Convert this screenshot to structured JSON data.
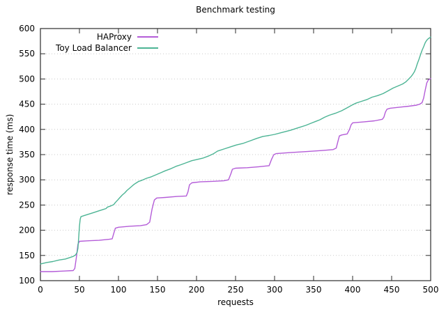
{
  "window": {
    "background": "#ffffff"
  },
  "chart_data": {
    "type": "line",
    "title": "Benchmark testing",
    "xlabel": "requests",
    "ylabel": "response time (ms)",
    "xlim": [
      0,
      500
    ],
    "ylim": [
      100,
      600
    ],
    "xticks": [
      0,
      50,
      100,
      150,
      200,
      250,
      300,
      350,
      400,
      450,
      500
    ],
    "yticks": [
      100,
      150,
      200,
      250,
      300,
      350,
      400,
      450,
      500,
      550,
      600
    ],
    "grid": "horizontal dotted gridlines at y ticks only",
    "legend_position": "top-left inside plot, labels right-aligned before line samples",
    "colors": {
      "axis": "#2b2b2b",
      "grid": "#c9c9c9",
      "text": "#000000",
      "haproxy": "#b45cd8",
      "toy_load_balancer": "#4cb494"
    },
    "series": [
      {
        "name": "HAProxy",
        "color": "#b45cd8",
        "points": [
          [
            0,
            118
          ],
          [
            15,
            118
          ],
          [
            30,
            119
          ],
          [
            42,
            120
          ],
          [
            44,
            124
          ],
          [
            46,
            145
          ],
          [
            48,
            172
          ],
          [
            50,
            178
          ],
          [
            60,
            179
          ],
          [
            75,
            180
          ],
          [
            88,
            182
          ],
          [
            92,
            183
          ],
          [
            94,
            194
          ],
          [
            96,
            204
          ],
          [
            100,
            206
          ],
          [
            115,
            208
          ],
          [
            128,
            209
          ],
          [
            136,
            211
          ],
          [
            140,
            216
          ],
          [
            143,
            242
          ],
          [
            146,
            260
          ],
          [
            149,
            264
          ],
          [
            160,
            265
          ],
          [
            175,
            267
          ],
          [
            187,
            268
          ],
          [
            189,
            276
          ],
          [
            191,
            290
          ],
          [
            194,
            294
          ],
          [
            205,
            296
          ],
          [
            220,
            297
          ],
          [
            235,
            298
          ],
          [
            241,
            300
          ],
          [
            244,
            312
          ],
          [
            246,
            321
          ],
          [
            250,
            323
          ],
          [
            265,
            324
          ],
          [
            280,
            326
          ],
          [
            293,
            328
          ],
          [
            296,
            340
          ],
          [
            299,
            350
          ],
          [
            302,
            352
          ],
          [
            320,
            354
          ],
          [
            340,
            356
          ],
          [
            360,
            358
          ],
          [
            375,
            360
          ],
          [
            379,
            363
          ],
          [
            381,
            375
          ],
          [
            383,
            387
          ],
          [
            386,
            389
          ],
          [
            393,
            391
          ],
          [
            396,
            400
          ],
          [
            398,
            409
          ],
          [
            400,
            413
          ],
          [
            415,
            415
          ],
          [
            428,
            417
          ],
          [
            438,
            420
          ],
          [
            440,
            424
          ],
          [
            442,
            434
          ],
          [
            444,
            440
          ],
          [
            448,
            442
          ],
          [
            460,
            444
          ],
          [
            472,
            446
          ],
          [
            482,
            448
          ],
          [
            486,
            450
          ],
          [
            489,
            453
          ],
          [
            491,
            462
          ],
          [
            493,
            478
          ],
          [
            495,
            492
          ],
          [
            497,
            498
          ],
          [
            500,
            501
          ]
        ]
      },
      {
        "name": "Toy Load Balancer",
        "color": "#4cb494",
        "points": [
          [
            0,
            133
          ],
          [
            8,
            136
          ],
          [
            16,
            138
          ],
          [
            24,
            141
          ],
          [
            32,
            143
          ],
          [
            38,
            146
          ],
          [
            42,
            148
          ],
          [
            45,
            151
          ],
          [
            47,
            156
          ],
          [
            48,
            164
          ],
          [
            49,
            185
          ],
          [
            50,
            208
          ],
          [
            51,
            222
          ],
          [
            52,
            227
          ],
          [
            56,
            229
          ],
          [
            62,
            232
          ],
          [
            68,
            235
          ],
          [
            74,
            238
          ],
          [
            80,
            241
          ],
          [
            84,
            243
          ],
          [
            86,
            246
          ],
          [
            90,
            248
          ],
          [
            94,
            251
          ],
          [
            96,
            255
          ],
          [
            99,
            260
          ],
          [
            102,
            265
          ],
          [
            105,
            270
          ],
          [
            108,
            274
          ],
          [
            111,
            279
          ],
          [
            114,
            283
          ],
          [
            117,
            287
          ],
          [
            120,
            291
          ],
          [
            123,
            294
          ],
          [
            126,
            297
          ],
          [
            130,
            299
          ],
          [
            136,
            303
          ],
          [
            142,
            306
          ],
          [
            148,
            310
          ],
          [
            154,
            314
          ],
          [
            160,
            318
          ],
          [
            167,
            322
          ],
          [
            174,
            327
          ],
          [
            180,
            330
          ],
          [
            187,
            334
          ],
          [
            194,
            338
          ],
          [
            200,
            340
          ],
          [
            208,
            343
          ],
          [
            215,
            347
          ],
          [
            222,
            352
          ],
          [
            227,
            357
          ],
          [
            235,
            361
          ],
          [
            243,
            365
          ],
          [
            251,
            369
          ],
          [
            259,
            372
          ],
          [
            268,
            377
          ],
          [
            277,
            382
          ],
          [
            285,
            386
          ],
          [
            293,
            388
          ],
          [
            300,
            390
          ],
          [
            310,
            394
          ],
          [
            320,
            398
          ],
          [
            330,
            403
          ],
          [
            340,
            408
          ],
          [
            348,
            413
          ],
          [
            353,
            416
          ],
          [
            358,
            419
          ],
          [
            364,
            424
          ],
          [
            370,
            428
          ],
          [
            378,
            432
          ],
          [
            386,
            437
          ],
          [
            393,
            443
          ],
          [
            399,
            448
          ],
          [
            404,
            452
          ],
          [
            410,
            455
          ],
          [
            418,
            459
          ],
          [
            425,
            464
          ],
          [
            432,
            467
          ],
          [
            439,
            471
          ],
          [
            446,
            477
          ],
          [
            452,
            482
          ],
          [
            458,
            486
          ],
          [
            464,
            490
          ],
          [
            468,
            494
          ],
          [
            472,
            500
          ],
          [
            475,
            505
          ],
          [
            477,
            509
          ],
          [
            479,
            514
          ],
          [
            481,
            521
          ],
          [
            483,
            531
          ],
          [
            485,
            539
          ],
          [
            487,
            548
          ],
          [
            489,
            557
          ],
          [
            491,
            564
          ],
          [
            493,
            572
          ],
          [
            495,
            577
          ],
          [
            497,
            580
          ],
          [
            500,
            583
          ]
        ]
      }
    ]
  }
}
